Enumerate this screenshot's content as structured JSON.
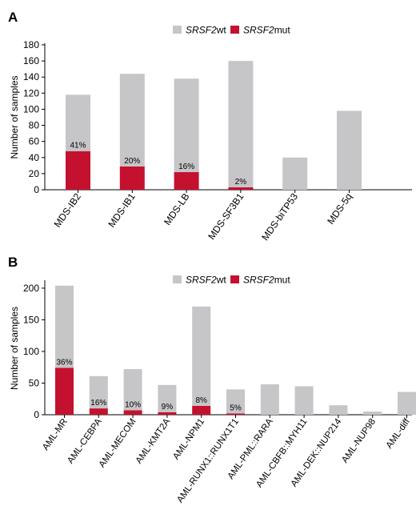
{
  "colors": {
    "wt": "#c6c5c7",
    "mut": "#c4112f",
    "axis": "#000000"
  },
  "chart_data": [
    {
      "type": "bar",
      "stacked": true,
      "panel_label": "A",
      "ylabel": "Number of samples",
      "ylim": [
        0,
        180
      ],
      "yticks": [
        0,
        20,
        40,
        60,
        80,
        100,
        120,
        140,
        160,
        180
      ],
      "legend": {
        "placement": "top-center",
        "items": [
          {
            "gene": "SRSF2",
            "suffix": "wt",
            "series": "wt"
          },
          {
            "gene": "SRSF2",
            "suffix": "mut",
            "series": "mut"
          }
        ]
      },
      "categories": [
        "MDS-IB2",
        "MDS-IB1",
        "MDS-LB",
        "MDS-SF3B1",
        "MDS-biTP53",
        "MDS-5q"
      ],
      "series": [
        {
          "name": "SRSF2wt",
          "key": "wt",
          "values": [
            70,
            115,
            116,
            157,
            40,
            98
          ]
        },
        {
          "name": "SRSF2mut",
          "key": "mut",
          "values": [
            48,
            29,
            22,
            3,
            0,
            0
          ]
        }
      ],
      "annotations": [
        "41%",
        "20%",
        "16%",
        "2%",
        "",
        ""
      ]
    },
    {
      "type": "bar",
      "stacked": true,
      "panel_label": "B",
      "ylabel": "Number of samples",
      "ylim": [
        0,
        210
      ],
      "yticks": [
        0,
        50,
        100,
        150,
        200
      ],
      "legend": {
        "placement": "top-center",
        "items": [
          {
            "gene": "SRSF2",
            "suffix": "wt",
            "series": "wt"
          },
          {
            "gene": "SRSF2",
            "suffix": "mut",
            "series": "mut"
          }
        ]
      },
      "categories": [
        "AML-MR",
        "AML-CEBPA",
        "AML-MECOM",
        "AML-KMT2A",
        "AML-NPM1",
        "AML-RUNX1::RUNX1T1",
        "AML-PML::RARA",
        "AML-CBFB::MYH11",
        "AML-DEK::NUP214",
        "AML-NUP98",
        "AML-diff"
      ],
      "series": [
        {
          "name": "SRSF2wt",
          "key": "wt",
          "values": [
            130,
            51,
            65,
            43,
            157,
            38,
            48,
            45,
            15,
            5,
            36
          ]
        },
        {
          "name": "SRSF2mut",
          "key": "mut",
          "values": [
            74,
            10,
            7,
            4,
            14,
            2,
            0,
            0,
            0,
            0,
            0
          ]
        }
      ],
      "annotations": [
        "36%",
        "16%",
        "10%",
        "9%",
        "8%",
        "5%",
        "",
        "",
        "",
        "",
        ""
      ]
    }
  ]
}
